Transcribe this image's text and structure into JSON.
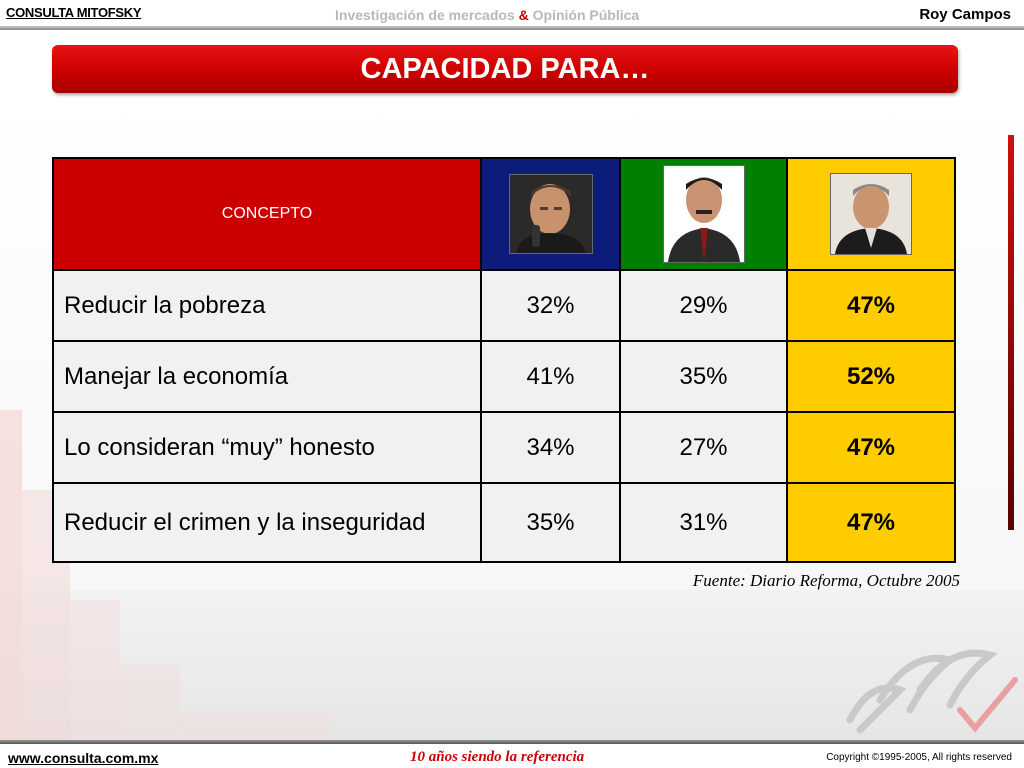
{
  "header": {
    "brand": "CONSULTA MITOFSKY",
    "tagline_part1": "Investigación de mercados ",
    "tagline_amp": "&",
    "tagline_part2": " Opinión Pública",
    "author": "Roy Campos"
  },
  "title": "CAPACIDAD PARA…",
  "table": {
    "header_label": "CONCEPTO",
    "columns": [
      {
        "photo_icon": "candidate-1-portrait-icon",
        "color": "#0b1c7a"
      },
      {
        "photo_icon": "candidate-2-portrait-icon",
        "color": "#008000"
      },
      {
        "photo_icon": "candidate-3-portrait-icon",
        "color": "#ffcc00"
      }
    ],
    "rows": [
      {
        "label": "Reducir la pobreza",
        "values": [
          "32%",
          "29%",
          "47%"
        ]
      },
      {
        "label": "Manejar la economía",
        "values": [
          "41%",
          "35%",
          "52%"
        ]
      },
      {
        "label": "Lo consideran “muy” honesto",
        "values": [
          "34%",
          "27%",
          "47%"
        ]
      },
      {
        "label": "Reducir el crimen y la inseguridad",
        "values": [
          "35%",
          "31%",
          "47%"
        ]
      }
    ]
  },
  "source": "Fuente: Diario Reforma, Octubre 2005",
  "footer": {
    "url": "www.consulta.com.mx",
    "slogan": "10 años siendo la referencia",
    "copyright": "Copyright ©1995-2005, All rights reserved"
  },
  "colors": {
    "accent": "#cc0000",
    "highlight": "#ffcc00"
  }
}
